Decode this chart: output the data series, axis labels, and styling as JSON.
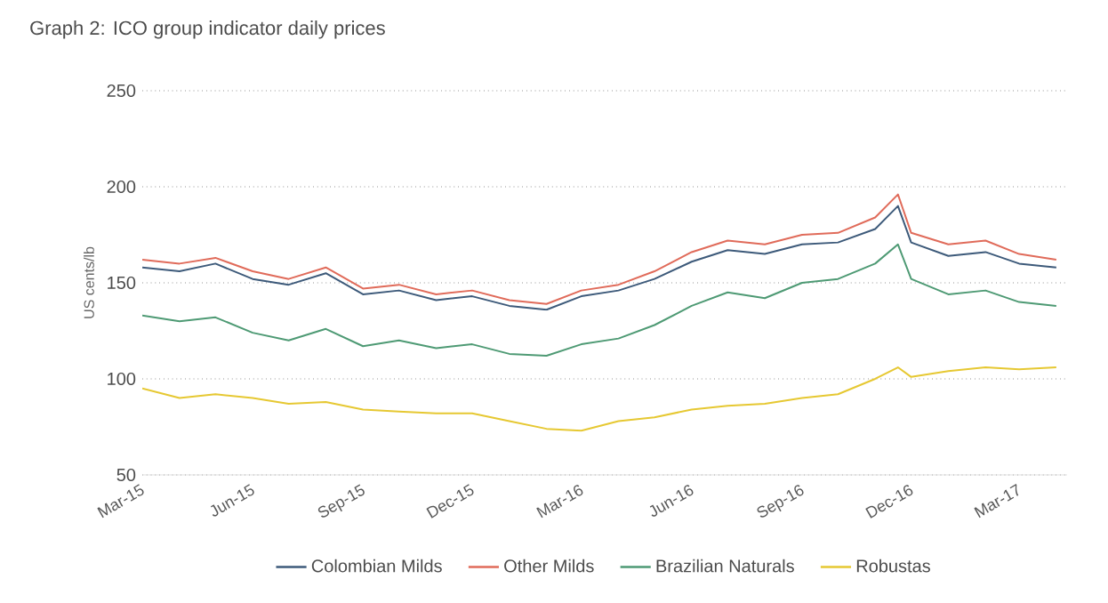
{
  "chart_data": {
    "type": "line",
    "title": "Graph 2: ICO group indicator daily prices",
    "ylabel": "US cents/lb",
    "x": [
      "2015-03-01",
      "2015-04-01",
      "2015-05-01",
      "2015-06-01",
      "2015-07-01",
      "2015-08-01",
      "2015-09-01",
      "2015-10-01",
      "2015-11-01",
      "2015-12-01",
      "2016-01-01",
      "2016-02-01",
      "2016-03-01",
      "2016-04-01",
      "2016-05-01",
      "2016-06-01",
      "2016-07-01",
      "2016-08-01",
      "2016-09-01",
      "2016-10-01",
      "2016-11-01",
      "2016-11-20",
      "2016-12-01",
      "2017-01-01",
      "2017-02-01",
      "2017-03-01",
      "2017-04-01"
    ],
    "series": [
      {
        "name": "Colombian Milds",
        "color": "#3d5a7a",
        "values": [
          158,
          156,
          160,
          152,
          149,
          155,
          144,
          146,
          141,
          143,
          138,
          136,
          143,
          146,
          152,
          161,
          167,
          165,
          170,
          171,
          178,
          190,
          171,
          164,
          166,
          160,
          158
        ]
      },
      {
        "name": "Other Milds",
        "color": "#e06b5a",
        "values": [
          162,
          160,
          163,
          156,
          152,
          158,
          147,
          149,
          144,
          146,
          141,
          139,
          146,
          149,
          156,
          166,
          172,
          170,
          175,
          176,
          184,
          196,
          176,
          170,
          172,
          165,
          162
        ]
      },
      {
        "name": "Brazilian Naturals",
        "color": "#4e9a74",
        "values": [
          133,
          130,
          132,
          124,
          120,
          126,
          117,
          120,
          116,
          118,
          113,
          112,
          118,
          121,
          128,
          138,
          145,
          142,
          150,
          152,
          160,
          170,
          152,
          144,
          146,
          140,
          138
        ]
      },
      {
        "name": "Robustas",
        "color": "#e6c832",
        "values": [
          95,
          90,
          92,
          90,
          87,
          88,
          84,
          83,
          82,
          82,
          78,
          74,
          73,
          78,
          80,
          84,
          86,
          87,
          90,
          92,
          100,
          106,
          101,
          104,
          106,
          105,
          106
        ]
      }
    ],
    "xlim": [
      "2015-03-01",
      "2017-04-10"
    ],
    "xticks": [
      {
        "value": "2015-03-01",
        "label": "Mar-15"
      },
      {
        "value": "2015-06-01",
        "label": "Jun-15"
      },
      {
        "value": "2015-09-01",
        "label": "Sep-15"
      },
      {
        "value": "2015-12-01",
        "label": "Dec-15"
      },
      {
        "value": "2016-03-01",
        "label": "Mar-16"
      },
      {
        "value": "2016-06-01",
        "label": "Jun-16"
      },
      {
        "value": "2016-09-01",
        "label": "Sep-16"
      },
      {
        "value": "2016-12-01",
        "label": "Dec-16"
      },
      {
        "value": "2017-03-01",
        "label": "Mar-17"
      }
    ],
    "ylim": [
      50,
      250
    ],
    "yticks": [
      50,
      100,
      150,
      200,
      250
    ],
    "grid": "y",
    "legend": "bottom",
    "marker": "none",
    "line_style": "solid"
  }
}
